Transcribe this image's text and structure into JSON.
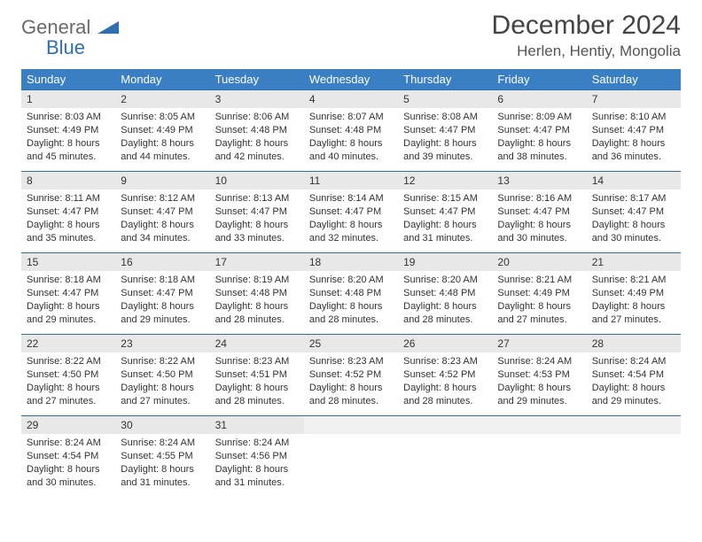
{
  "logo": {
    "text1": "General",
    "text2": "Blue"
  },
  "title": "December 2024",
  "location": "Herlen, Hentiy, Mongolia",
  "colors": {
    "header_bg": "#3a7fc4",
    "header_text": "#ffffff",
    "daynum_bg": "#e8e8e8",
    "border": "#2f6fb0",
    "logo_gray": "#6a6a6a",
    "logo_blue": "#2f6fb0"
  },
  "typography": {
    "title_fontsize": 30,
    "location_fontsize": 17,
    "header_fontsize": 13,
    "body_fontsize": 11
  },
  "day_headers": [
    "Sunday",
    "Monday",
    "Tuesday",
    "Wednesday",
    "Thursday",
    "Friday",
    "Saturday"
  ],
  "weeks": [
    [
      {
        "n": "1",
        "sr": "8:03 AM",
        "ss": "4:49 PM",
        "dh": "8",
        "dm": "45"
      },
      {
        "n": "2",
        "sr": "8:05 AM",
        "ss": "4:49 PM",
        "dh": "8",
        "dm": "44"
      },
      {
        "n": "3",
        "sr": "8:06 AM",
        "ss": "4:48 PM",
        "dh": "8",
        "dm": "42"
      },
      {
        "n": "4",
        "sr": "8:07 AM",
        "ss": "4:48 PM",
        "dh": "8",
        "dm": "40"
      },
      {
        "n": "5",
        "sr": "8:08 AM",
        "ss": "4:47 PM",
        "dh": "8",
        "dm": "39"
      },
      {
        "n": "6",
        "sr": "8:09 AM",
        "ss": "4:47 PM",
        "dh": "8",
        "dm": "38"
      },
      {
        "n": "7",
        "sr": "8:10 AM",
        "ss": "4:47 PM",
        "dh": "8",
        "dm": "36"
      }
    ],
    [
      {
        "n": "8",
        "sr": "8:11 AM",
        "ss": "4:47 PM",
        "dh": "8",
        "dm": "35"
      },
      {
        "n": "9",
        "sr": "8:12 AM",
        "ss": "4:47 PM",
        "dh": "8",
        "dm": "34"
      },
      {
        "n": "10",
        "sr": "8:13 AM",
        "ss": "4:47 PM",
        "dh": "8",
        "dm": "33"
      },
      {
        "n": "11",
        "sr": "8:14 AM",
        "ss": "4:47 PM",
        "dh": "8",
        "dm": "32"
      },
      {
        "n": "12",
        "sr": "8:15 AM",
        "ss": "4:47 PM",
        "dh": "8",
        "dm": "31"
      },
      {
        "n": "13",
        "sr": "8:16 AM",
        "ss": "4:47 PM",
        "dh": "8",
        "dm": "30"
      },
      {
        "n": "14",
        "sr": "8:17 AM",
        "ss": "4:47 PM",
        "dh": "8",
        "dm": "30"
      }
    ],
    [
      {
        "n": "15",
        "sr": "8:18 AM",
        "ss": "4:47 PM",
        "dh": "8",
        "dm": "29"
      },
      {
        "n": "16",
        "sr": "8:18 AM",
        "ss": "4:47 PM",
        "dh": "8",
        "dm": "29"
      },
      {
        "n": "17",
        "sr": "8:19 AM",
        "ss": "4:48 PM",
        "dh": "8",
        "dm": "28"
      },
      {
        "n": "18",
        "sr": "8:20 AM",
        "ss": "4:48 PM",
        "dh": "8",
        "dm": "28"
      },
      {
        "n": "19",
        "sr": "8:20 AM",
        "ss": "4:48 PM",
        "dh": "8",
        "dm": "28"
      },
      {
        "n": "20",
        "sr": "8:21 AM",
        "ss": "4:49 PM",
        "dh": "8",
        "dm": "27"
      },
      {
        "n": "21",
        "sr": "8:21 AM",
        "ss": "4:49 PM",
        "dh": "8",
        "dm": "27"
      }
    ],
    [
      {
        "n": "22",
        "sr": "8:22 AM",
        "ss": "4:50 PM",
        "dh": "8",
        "dm": "27"
      },
      {
        "n": "23",
        "sr": "8:22 AM",
        "ss": "4:50 PM",
        "dh": "8",
        "dm": "27"
      },
      {
        "n": "24",
        "sr": "8:23 AM",
        "ss": "4:51 PM",
        "dh": "8",
        "dm": "28"
      },
      {
        "n": "25",
        "sr": "8:23 AM",
        "ss": "4:52 PM",
        "dh": "8",
        "dm": "28"
      },
      {
        "n": "26",
        "sr": "8:23 AM",
        "ss": "4:52 PM",
        "dh": "8",
        "dm": "28"
      },
      {
        "n": "27",
        "sr": "8:24 AM",
        "ss": "4:53 PM",
        "dh": "8",
        "dm": "29"
      },
      {
        "n": "28",
        "sr": "8:24 AM",
        "ss": "4:54 PM",
        "dh": "8",
        "dm": "29"
      }
    ],
    [
      {
        "n": "29",
        "sr": "8:24 AM",
        "ss": "4:54 PM",
        "dh": "8",
        "dm": "30"
      },
      {
        "n": "30",
        "sr": "8:24 AM",
        "ss": "4:55 PM",
        "dh": "8",
        "dm": "31"
      },
      {
        "n": "31",
        "sr": "8:24 AM",
        "ss": "4:56 PM",
        "dh": "8",
        "dm": "31"
      },
      null,
      null,
      null,
      null
    ]
  ],
  "labels": {
    "sunrise": "Sunrise:",
    "sunset": "Sunset:",
    "daylight_prefix": "Daylight:",
    "hours_word": "hours",
    "and_word": "and",
    "minutes_word": "minutes."
  }
}
